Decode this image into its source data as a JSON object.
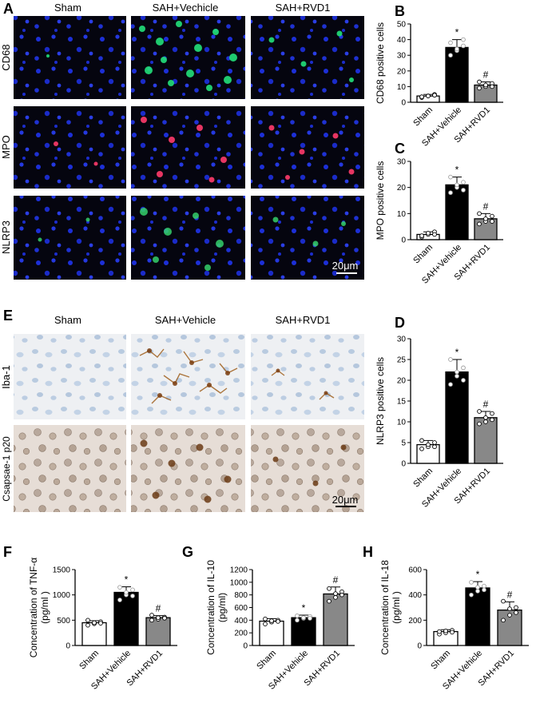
{
  "panels": {
    "A": {
      "letter": "A",
      "columns": [
        "Sham",
        "SAH+Vechicle",
        "SAH+RVD1"
      ],
      "rows": [
        "CD68",
        "MPO",
        "NLRP3"
      ],
      "scale_bar": "20μm"
    },
    "E": {
      "letter": "E",
      "columns": [
        "Sham",
        "SAH+Vehicle",
        "SAH+RVD1"
      ],
      "rows": [
        "Iba-1",
        "Csapsae-1 p20"
      ],
      "scale_bar": "20μm"
    }
  },
  "colors": {
    "sham_bar": "#ffffff",
    "vehicle_bar": "#000000",
    "rvd1_bar": "#888888",
    "fluor_bg": "#05050f",
    "ihc_bg": "#eef0f3"
  },
  "chart_data": [
    {
      "id": "B",
      "letter": "B",
      "type": "bar",
      "categories": [
        "Sham",
        "SAH+Vehicle",
        "SAH+RVD1"
      ],
      "values": [
        4,
        35,
        11
      ],
      "errors": [
        1,
        5,
        2
      ],
      "points": [
        [
          3,
          4,
          5,
          3.5,
          4,
          4.5
        ],
        [
          30,
          33,
          36,
          38,
          34,
          40
        ],
        [
          9,
          10,
          12,
          13,
          11,
          10
        ]
      ],
      "marks": [
        "",
        "*",
        "#"
      ],
      "ylabel": "CD68 positive cells",
      "ylim": [
        0,
        50
      ],
      "yticks": [
        0,
        10,
        20,
        30,
        40,
        50
      ]
    },
    {
      "id": "C",
      "letter": "C",
      "type": "bar",
      "categories": [
        "Sham",
        "SAH+Vehicle",
        "SAH+RVD1"
      ],
      "values": [
        2,
        21,
        8
      ],
      "errors": [
        1,
        3,
        2
      ],
      "points": [
        [
          1,
          2,
          3,
          1.5,
          2.5,
          2
        ],
        [
          18,
          20,
          22,
          24,
          21,
          19
        ],
        [
          6,
          7,
          9,
          10,
          8,
          7
        ]
      ],
      "marks": [
        "",
        "*",
        "#"
      ],
      "ylabel": "MPO positive cells",
      "ylim": [
        0,
        30
      ],
      "yticks": [
        0,
        10,
        20,
        30
      ]
    },
    {
      "id": "D",
      "letter": "D",
      "type": "bar",
      "categories": [
        "Sham",
        "SAH+Vehicle",
        "SAH+RVD1"
      ],
      "values": [
        4.5,
        22,
        11
      ],
      "errors": [
        1,
        3,
        1.5
      ],
      "points": [
        [
          3.5,
          4,
          5,
          5.5,
          4.5,
          4
        ],
        [
          19,
          21,
          23,
          25,
          22,
          20
        ],
        [
          9.5,
          10,
          12,
          12.5,
          11,
          10.5
        ]
      ],
      "marks": [
        "",
        "*",
        "#"
      ],
      "ylabel": "NLRP3 positive cells",
      "ylim": [
        0,
        30
      ],
      "yticks": [
        0,
        5,
        10,
        15,
        20,
        25,
        30
      ]
    },
    {
      "id": "F",
      "letter": "F",
      "type": "bar",
      "categories": [
        "Sham",
        "SAH+Vehicle",
        "SAH+RVD1"
      ],
      "values": [
        450,
        1050,
        550
      ],
      "errors": [
        40,
        110,
        40
      ],
      "points": [
        [
          400,
          430,
          470,
          500,
          450,
          440
        ],
        [
          900,
          1000,
          1100,
          1150,
          1050,
          980
        ],
        [
          500,
          520,
          560,
          600,
          550,
          540
        ]
      ],
      "marks": [
        "",
        "*",
        "#"
      ],
      "ylabel": [
        "Concentration of TNF-α",
        "(pg/ml )"
      ],
      "ylim": [
        0,
        1500
      ],
      "yticks": [
        0,
        500,
        1000,
        1500
      ]
    },
    {
      "id": "G",
      "letter": "G",
      "type": "bar",
      "categories": [
        "Sham",
        "SAH+Vehicle",
        "SAH+RVD1"
      ],
      "values": [
        385,
        440,
        815
      ],
      "errors": [
        40,
        40,
        110
      ],
      "points": [
        [
          340,
          370,
          400,
          420,
          390,
          380
        ],
        [
          400,
          430,
          460,
          470,
          440,
          430
        ],
        [
          700,
          760,
          850,
          900,
          820,
          800
        ]
      ],
      "marks": [
        "",
        "*",
        "#"
      ],
      "ylabel": [
        "Concentration of IL-10",
        "(pg/ml)"
      ],
      "ylim": [
        0,
        1200
      ],
      "yticks": [
        0,
        200,
        400,
        600,
        800,
        1000,
        1200
      ]
    },
    {
      "id": "H",
      "letter": "H",
      "type": "bar",
      "categories": [
        "Sham",
        "SAH+Vehicle",
        "SAH+RVD1"
      ],
      "values": [
        110,
        455,
        280
      ],
      "errors": [
        15,
        50,
        65
      ],
      "points": [
        [
          90,
          100,
          120,
          110,
          115,
          105
        ],
        [
          400,
          430,
          470,
          500,
          460,
          440
        ],
        [
          200,
          240,
          300,
          350,
          290,
          260
        ]
      ],
      "marks": [
        "",
        "*",
        "#"
      ],
      "ylabel": [
        "Concentration of IL-18",
        "(pg/ml )"
      ],
      "ylim": [
        0,
        600
      ],
      "yticks": [
        0,
        200,
        400,
        600
      ]
    }
  ]
}
